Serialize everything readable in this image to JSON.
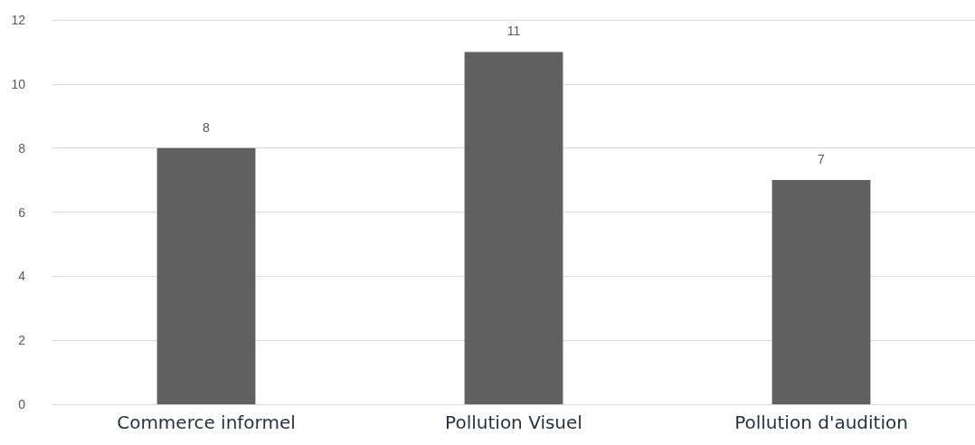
{
  "chart_data": {
    "type": "bar",
    "categories": [
      "Commerce informel",
      "Pollution Visuel",
      "Pollution d'audition"
    ],
    "values": [
      8,
      11,
      7
    ],
    "color": "#606060",
    "ylim": [
      0,
      12
    ],
    "yticks": [
      0,
      2,
      4,
      6,
      8,
      10,
      12
    ],
    "grid": "y",
    "data_labels": true
  }
}
